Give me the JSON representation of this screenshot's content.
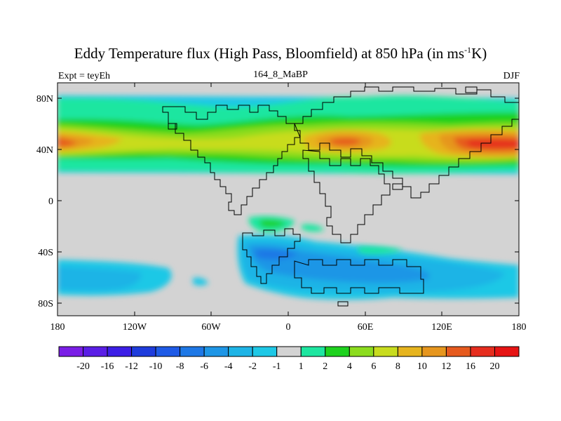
{
  "title": {
    "main_prefix": "Eddy Temperature flux (High Pass, Bloomfield) at 850 hPa (in ms",
    "superscript": "-1",
    "main_suffix": "K)"
  },
  "subtitle": {
    "left": "Expt = teyEh",
    "center": "164_8_MaBP",
    "right": "DJF"
  },
  "map": {
    "background_color": "#d3d3d3",
    "lat_ticks": [
      "80N",
      "40N",
      "0",
      "40S",
      "80S"
    ],
    "lon_ticks": [
      "180",
      "120W",
      "60W",
      "0",
      "60E",
      "120E",
      "180"
    ]
  },
  "colorbar": {
    "labels": [
      "-20",
      "-16",
      "-12",
      "-10",
      "-8",
      "-6",
      "-4",
      "-2",
      "-1",
      "1",
      "2",
      "4",
      "6",
      "8",
      "10",
      "12",
      "16",
      "20"
    ],
    "colors": [
      "#7a1ee6",
      "#5a1ee6",
      "#3c1ee6",
      "#1e3cdc",
      "#1e5ae6",
      "#1e78e6",
      "#1e96e6",
      "#1eb4e6",
      "#1ec8e6",
      "#d3d3d3",
      "#1ee6a0",
      "#1ed21e",
      "#8cdc1e",
      "#c8dc1e",
      "#e6b41e",
      "#e6961e",
      "#e65a1e",
      "#e62d1e",
      "#e61414"
    ]
  },
  "chart_data": {
    "type": "filled-contour map",
    "title": "Eddy Temperature flux (High Pass, Bloomfield) at 850 hPa (in ms-1K)",
    "experiment": "teyEh",
    "case": "164_8_MaBP",
    "season": "DJF",
    "x_range_deg_lon": [
      -180,
      180
    ],
    "y_range_deg_lat": [
      -90,
      90
    ],
    "contour_levels": [
      -20,
      -16,
      -12,
      -10,
      -8,
      -6,
      -4,
      -2,
      -1,
      1,
      2,
      4,
      6,
      8,
      10,
      12,
      16,
      20
    ],
    "features": [
      {
        "region": "NH storm track ~40N, 180-150W",
        "approx_value": 14
      },
      {
        "region": "NH storm track ~40N, 30E-60E",
        "approx_value": 12
      },
      {
        "region": "NH storm track ~40N, 120E-180",
        "approx_value": 14
      },
      {
        "region": "SH storm track ~50S, 70W-130E",
        "approx_value": -6
      }
    ]
  }
}
